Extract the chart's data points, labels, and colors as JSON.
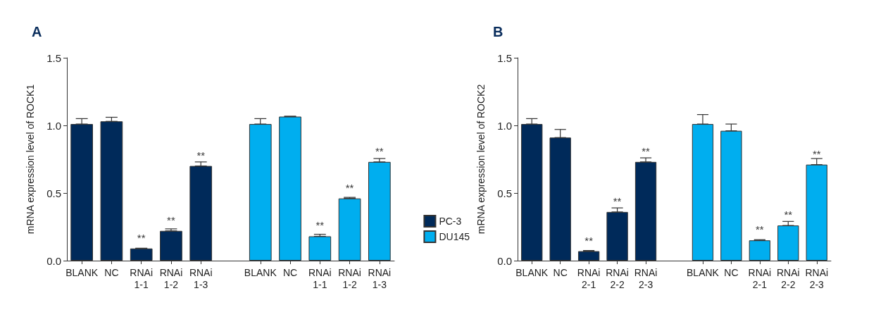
{
  "chart_data": [
    {
      "type": "bar",
      "title": "A",
      "ylabel": "mRNA expression level of ROCK1",
      "categories": [
        "BLANK",
        "NC",
        "RNAi\n1-1",
        "RNAi\n1-2",
        "RNAi\n1-3",
        null,
        "BLANK",
        "NC",
        "RNAi\n1-1",
        "RNAi\n1-2",
        "RNAi\n1-3"
      ],
      "series": [
        {
          "name": "PC-3",
          "color": "#002a5a",
          "values": [
            1.01,
            1.03,
            0.09,
            0.22,
            0.7,
            null,
            null,
            null,
            null,
            null,
            null
          ],
          "errors": [
            [
              1.01,
              1.05
            ],
            [
              1.03,
              1.06
            ],
            [
              0.09,
              0.092
            ],
            [
              0.22,
              0.235
            ],
            [
              0.7,
              0.73
            ],
            null,
            null,
            null,
            null,
            null,
            null
          ],
          "value_labels": [
            null,
            null,
            "**",
            "**",
            "**",
            null,
            null,
            null,
            null,
            null,
            null
          ]
        },
        {
          "name": "DU145",
          "color": "#00aeef",
          "values": [
            null,
            null,
            null,
            null,
            null,
            null,
            1.01,
            1.065,
            0.18,
            0.46,
            0.73
          ],
          "errors": [
            null,
            null,
            null,
            null,
            null,
            null,
            [
              1.01,
              1.05
            ],
            [
              1.065,
              1.068
            ],
            [
              0.18,
              0.195
            ],
            [
              0.46,
              0.468
            ],
            [
              0.73,
              0.755
            ]
          ],
          "value_labels": [
            null,
            null,
            null,
            null,
            null,
            null,
            null,
            null,
            "**",
            "**",
            "**"
          ]
        }
      ],
      "ylim": [
        0,
        1.5
      ],
      "yticks": [
        {
          "value": 0,
          "label": "0.0"
        },
        {
          "value": 0.5,
          "label": "0.5"
        },
        {
          "value": 1,
          "label": "1.0"
        },
        {
          "value": 1.5,
          "label": "1.5"
        }
      ],
      "grid": false,
      "legend": "right"
    },
    {
      "type": "bar",
      "title": "B",
      "ylabel": "mRNA expression level of ROCK2",
      "categories": [
        "BLANK",
        "NC",
        "RNAi\n2-1",
        "RNAi\n2-2",
        "RNAi\n2-3",
        null,
        "BLANK",
        "NC",
        "RNAi\n2-1",
        "RNAi\n2-2",
        "RNAi\n2-3"
      ],
      "series": [
        {
          "color": "#002a5a",
          "values": [
            1.01,
            0.91,
            0.07,
            0.36,
            0.73,
            null,
            null,
            null,
            null,
            null,
            null
          ],
          "errors": [
            [
              1.01,
              1.05
            ],
            [
              0.91,
              0.97
            ],
            [
              0.07,
              0.075
            ],
            [
              0.36,
              0.39
            ],
            [
              0.73,
              0.76
            ],
            null,
            null,
            null,
            null,
            null,
            null
          ],
          "value_labels": [
            null,
            null,
            "**",
            "**",
            "**",
            null,
            null,
            null,
            null,
            null,
            null
          ]
        },
        {
          "color": "#00aeef",
          "values": [
            null,
            null,
            null,
            null,
            null,
            null,
            1.01,
            0.96,
            0.15,
            0.26,
            0.71
          ],
          "errors": [
            null,
            null,
            null,
            null,
            null,
            null,
            [
              1.01,
              1.08
            ],
            [
              0.96,
              1.01
            ],
            [
              0.15,
              0.155
            ],
            [
              0.26,
              0.29
            ],
            [
              0.71,
              0.755
            ]
          ],
          "value_labels": [
            null,
            null,
            null,
            null,
            null,
            null,
            null,
            null,
            "**",
            "**",
            "**"
          ]
        }
      ],
      "ylim": [
        0,
        1.5
      ],
      "yticks": [
        {
          "value": 0,
          "label": "0.0"
        },
        {
          "value": 0.5,
          "label": "0.5"
        },
        {
          "value": 1,
          "label": "1.0"
        },
        {
          "value": 1.5,
          "label": "1.5"
        }
      ],
      "grid": false,
      "legend": false
    }
  ]
}
